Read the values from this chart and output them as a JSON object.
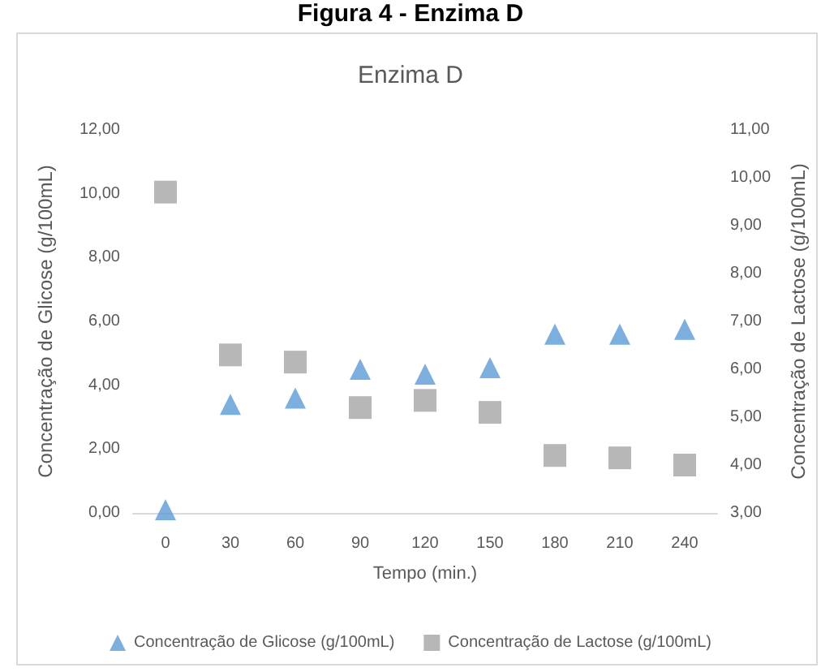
{
  "chart_data": {
    "type": "scatter",
    "title": "Enzima D",
    "annotations": [
      "Figura 4 - Enzima D"
    ],
    "xlabel": "Tempo (min.)",
    "ylabel": "Concentração de Glicose (g/100mL)",
    "y2label": "Concentração de Lactose (g/100mL)",
    "categories": [
      "0",
      "30",
      "60",
      "90",
      "120",
      "150",
      "180",
      "210",
      "240"
    ],
    "series": [
      {
        "name": "Concentração de Glicose (g/100mL)",
        "color": "#5b9bd5",
        "marker": "triangle",
        "values": [
          0.1,
          3.4,
          3.6,
          4.5,
          4.35,
          4.55,
          5.6,
          5.6,
          5.75
        ]
      },
      {
        "name": "Concentração de Lactose (g/100mL)",
        "color": "#a5a5a5",
        "marker": "square",
        "axis": "y2",
        "values": [
          9.7,
          6.3,
          6.15,
          5.2,
          5.35,
          5.1,
          4.2,
          4.15,
          4.0
        ]
      }
    ],
    "ylim": [
      0,
      12
    ],
    "yticks": [
      {
        "value": 0,
        "label": "0,00"
      },
      {
        "value": 2,
        "label": "2,00"
      },
      {
        "value": 4,
        "label": "4,00"
      },
      {
        "value": 6,
        "label": "6,00"
      },
      {
        "value": 8,
        "label": "8,00"
      },
      {
        "value": 10,
        "label": "10,00"
      },
      {
        "value": 12,
        "label": "12,00"
      }
    ],
    "y2lim": [
      3,
      11
    ],
    "y2ticks": [
      {
        "value": 3,
        "label": "3,00"
      },
      {
        "value": 4,
        "label": "4,00"
      },
      {
        "value": 5,
        "label": "5,00"
      },
      {
        "value": 6,
        "label": "6,00"
      },
      {
        "value": 7,
        "label": "7,00"
      },
      {
        "value": 8,
        "label": "8,00"
      },
      {
        "value": 9,
        "label": "9,00"
      },
      {
        "value": 10,
        "label": "10,00"
      },
      {
        "value": 11,
        "label": "11,00"
      }
    ],
    "grid": false,
    "legend": "bottom"
  }
}
